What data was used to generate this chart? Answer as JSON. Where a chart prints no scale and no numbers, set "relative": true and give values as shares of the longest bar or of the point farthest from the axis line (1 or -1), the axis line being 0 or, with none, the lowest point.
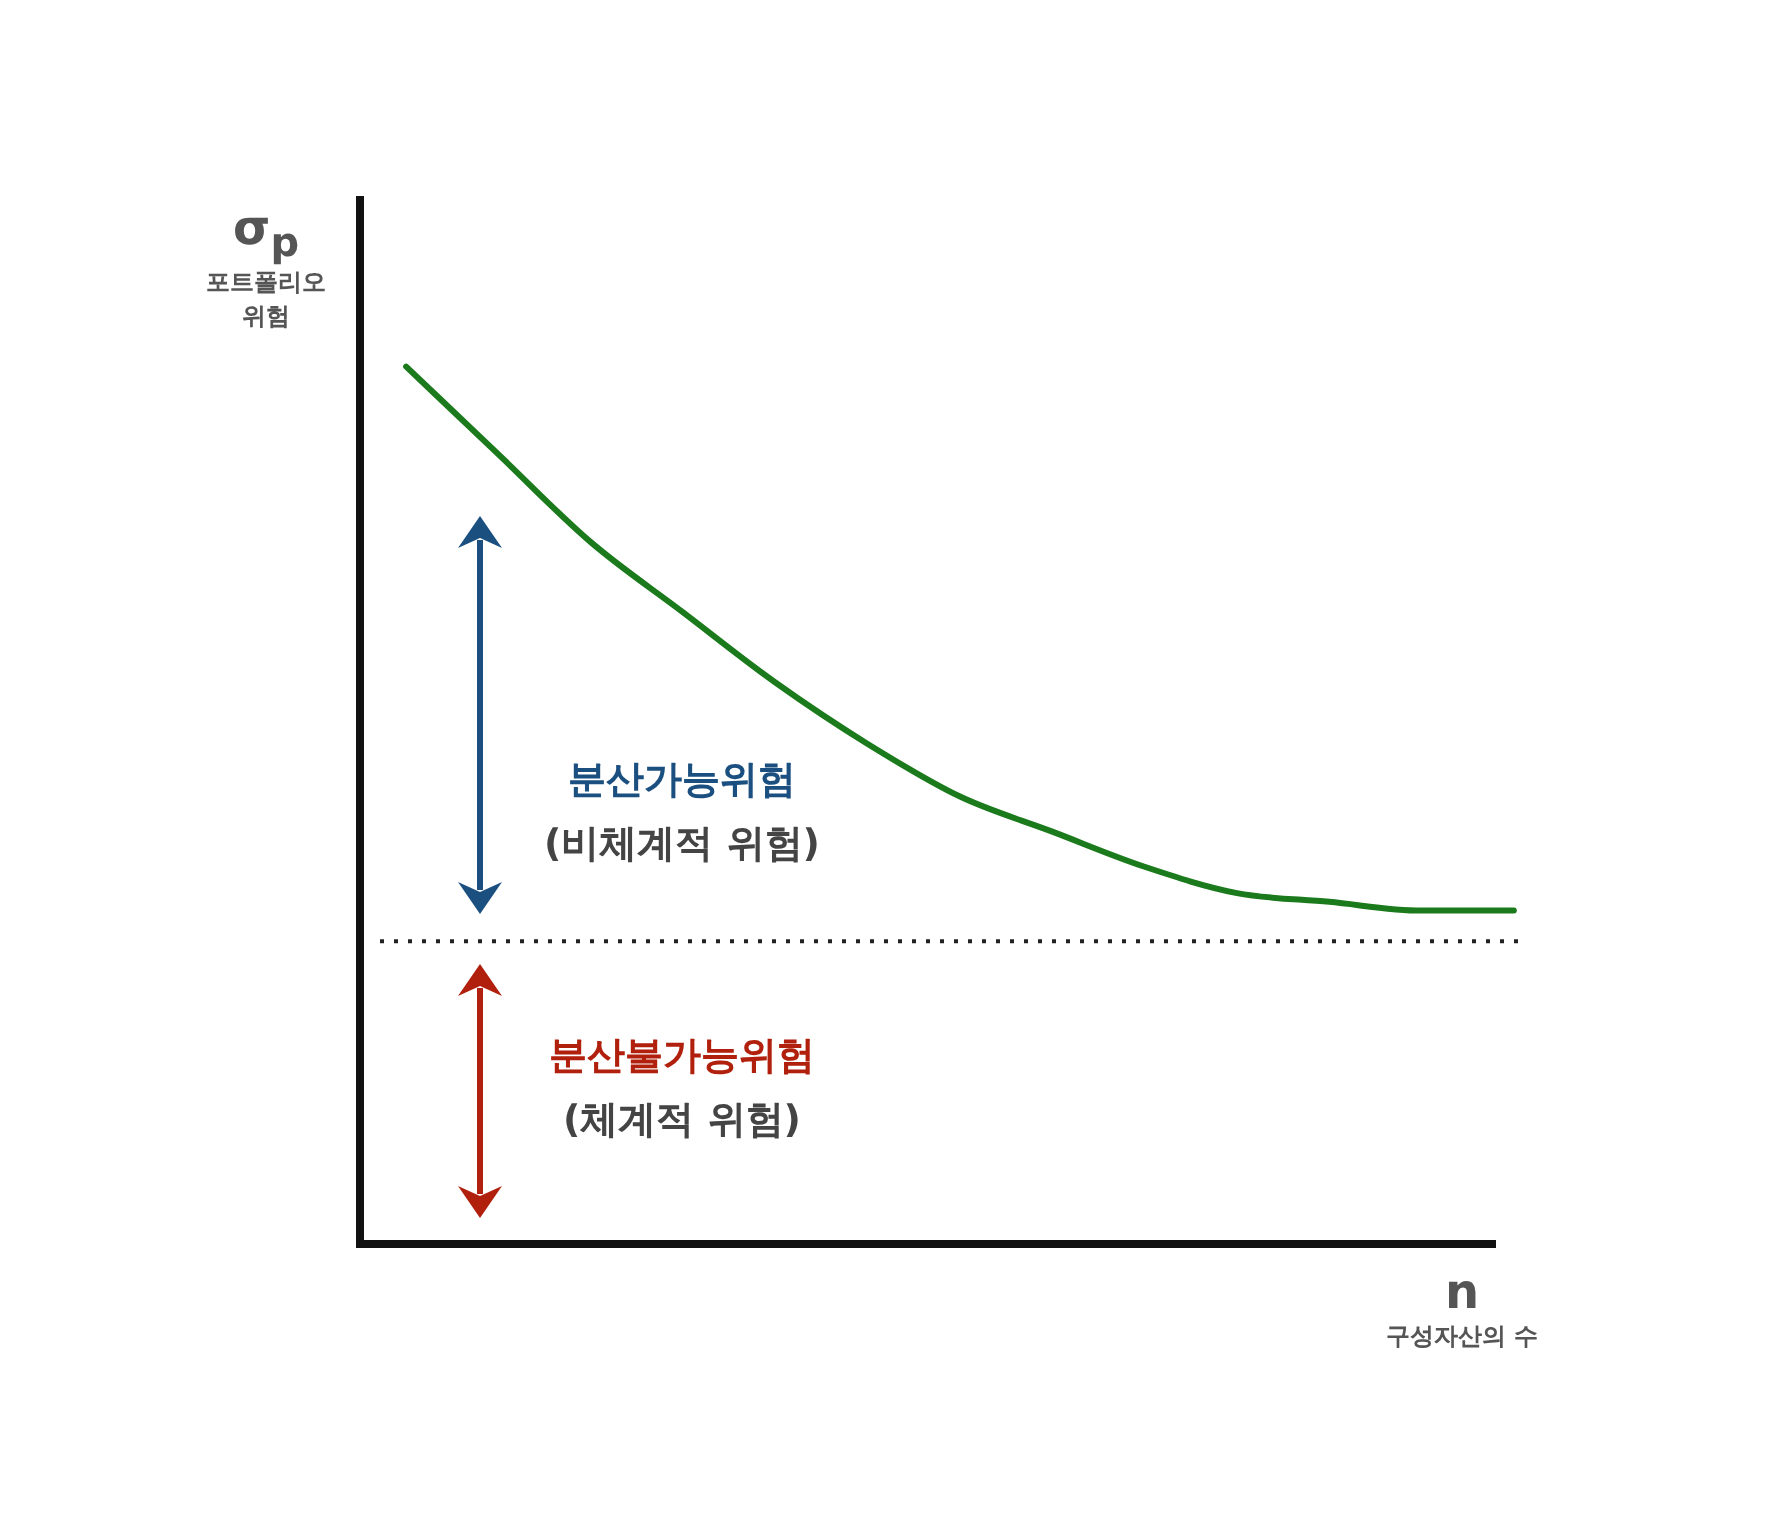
{
  "chart_data": {
    "type": "line",
    "relative": true,
    "categories": [
      null,
      null,
      null,
      null,
      null,
      null,
      null,
      null,
      null,
      null,
      null,
      null,
      null
    ],
    "series": [
      {
        "color": "#1b7a1b",
        "values": [
          1,
          0.9,
          0.8,
          0.72,
          0.64,
          0.57,
          0.51,
          0.47,
          0.43,
          0.4,
          0.39,
          0.38,
          0.38
        ]
      }
    ],
    "ylabel": "σ$_{p}$\n포트폴리오\n위험",
    "xlabel": "n\n구성자산의 수",
    "annotations": [
      "분산가능위험\n(비체계적 위험)",
      "분산불가능위험\n(체계적 위험)"
    ],
    "ref_lines": [
      {
        "axis": "y",
        "value": 0.345,
        "color": "#222222",
        "line_style": "dotted"
      }
    ],
    "grid": false,
    "legend": false,
    "marker": "none",
    "line_style": "solid"
  }
}
